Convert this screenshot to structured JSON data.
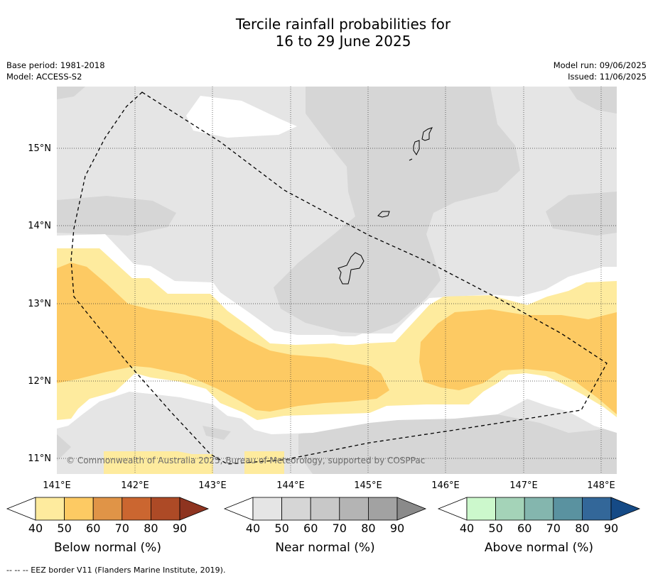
{
  "title_line1": "Tercile rainfall probabilities for",
  "title_line2": "16 to 29 June 2025",
  "base_period": "Base period: 1981-2018",
  "model": "Model: ACCESS-S2",
  "model_run": "Model run: 09/06/2025",
  "issued": "Issued: 11/06/2025",
  "copyright": "© Commonwealth of Australia 2025, Bureau of Meteorology, supported by COSPPac",
  "footer": "--  --  -- EEZ border V11 (Flanders Marine Institute, 2019).",
  "lat_labels": [
    "15°N",
    "14°N",
    "13°N",
    "12°N",
    "11°N"
  ],
  "lon_labels": [
    "141°E",
    "142°E",
    "143°E",
    "144°E",
    "145°E",
    "146°E",
    "147°E",
    "148°E"
  ],
  "colorbars": [
    {
      "title": "Below normal (%)",
      "ticks": [
        "40",
        "50",
        "60",
        "70",
        "80",
        "90"
      ],
      "colors": [
        "#ffffff",
        "#feeb9e",
        "#fdca63",
        "#e09447",
        "#cb6630",
        "#ad4a26",
        "#8e3420"
      ]
    },
    {
      "title": "Near normal (%)",
      "ticks": [
        "40",
        "50",
        "60",
        "70",
        "80",
        "90"
      ],
      "colors": [
        "#ffffff",
        "#e5e5e5",
        "#d6d6d6",
        "#c8c8c8",
        "#b4b4b4",
        "#a2a2a2",
        "#8a8a8a"
      ]
    },
    {
      "title": "Above normal (%)",
      "ticks": [
        "40",
        "50",
        "60",
        "70",
        "80",
        "90"
      ],
      "colors": [
        "#ffffff",
        "#ccf8cc",
        "#a4d3b8",
        "#84b6ae",
        "#5a92a0",
        "#336799",
        "#154a86"
      ]
    }
  ]
}
